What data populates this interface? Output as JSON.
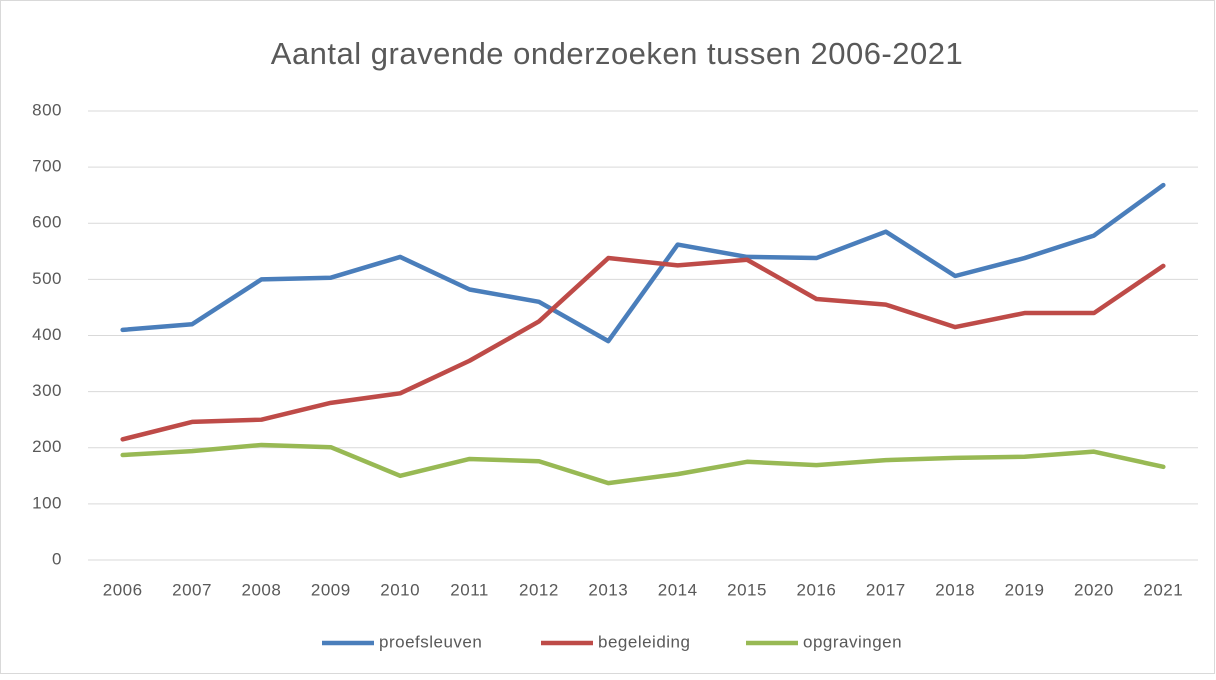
{
  "chart_data": {
    "type": "line",
    "title": "Aantal gravende onderzoeken tussen 2006-2021",
    "categories": [
      "2006",
      "2007",
      "2008",
      "2009",
      "2010",
      "2011",
      "2012",
      "2013",
      "2014",
      "2015",
      "2016",
      "2017",
      "2018",
      "2019",
      "2020",
      "2021"
    ],
    "series": [
      {
        "name": "proefsleuven",
        "color": "#4a7ebb",
        "values": [
          410,
          420,
          500,
          503,
          540,
          482,
          460,
          390,
          562,
          540,
          538,
          585,
          506,
          538,
          578,
          668
        ]
      },
      {
        "name": "begeleiding",
        "color": "#be4b48",
        "values": [
          215,
          246,
          250,
          280,
          297,
          355,
          425,
          538,
          525,
          535,
          465,
          455,
          415,
          440,
          440,
          524
        ]
      },
      {
        "name": "opgravingen",
        "color": "#98b954",
        "values": [
          187,
          194,
          205,
          201,
          150,
          180,
          176,
          137,
          153,
          175,
          169,
          178,
          182,
          184,
          193,
          166
        ]
      }
    ],
    "ylim": [
      0,
      800
    ],
    "yticks": [
      0,
      100,
      200,
      300,
      400,
      500,
      600,
      700,
      800
    ],
    "grid": true,
    "legend": "bottom"
  }
}
